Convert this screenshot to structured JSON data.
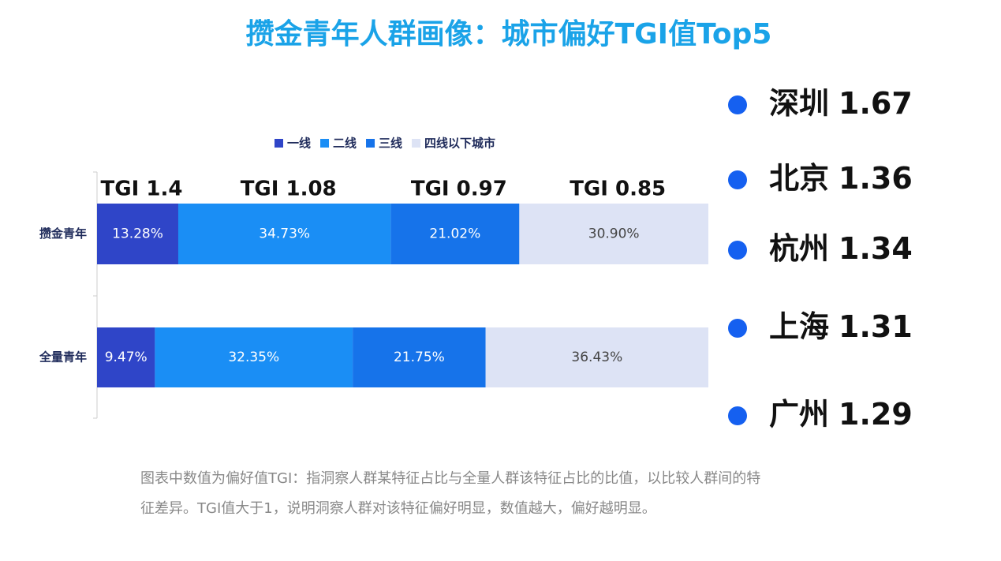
{
  "chart_data": {
    "type": "stacked-bar-horizontal",
    "title": "攒金青年人群画像：城市偏好TGI值Top5",
    "categories": [
      "攒金青年",
      "全量青年"
    ],
    "series": [
      {
        "name": "一线",
        "color": "#2f45c8",
        "values": [
          13.28,
          9.47
        ],
        "value_labels": [
          "13.28%",
          "9.47%"
        ],
        "label_color": "#ffffff"
      },
      {
        "name": "二线",
        "color": "#1a8ef5",
        "values": [
          34.73,
          32.35
        ],
        "value_labels": [
          "34.73%",
          "32.35%"
        ],
        "label_color": "#ffffff"
      },
      {
        "name": "三线",
        "color": "#1673ea",
        "values": [
          21.02,
          21.75
        ],
        "value_labels": [
          "21.02%",
          "21.75%"
        ],
        "label_color": "#ffffff"
      },
      {
        "name": "四线以下城市",
        "color": "#dde3f5",
        "values": [
          30.9,
          36.43
        ],
        "value_labels": [
          "30.90%",
          "36.43%"
        ],
        "label_color": "#444444"
      }
    ],
    "annotations": [
      "TGI 1.4",
      "TGI 1.08",
      "TGI 0.97",
      "TGI 0.85"
    ],
    "legend": "top"
  },
  "ranking": [
    {
      "city": "深圳",
      "tgi": 1.67
    },
    {
      "city": "北京",
      "tgi": 1.36
    },
    {
      "city": "杭州",
      "tgi": 1.34
    },
    {
      "city": "上海",
      "tgi": 1.31
    },
    {
      "city": "广州",
      "tgi": 1.29
    }
  ],
  "footnote": [
    "图表中数值为偏好值TGI：指洞察人群某特征占比与全量人群该特征占比的比值，以比较人群间的特",
    "征差异。TGI值大于1，说明洞察人群对该特征偏好明显，数值越大，偏好越明显。"
  ]
}
